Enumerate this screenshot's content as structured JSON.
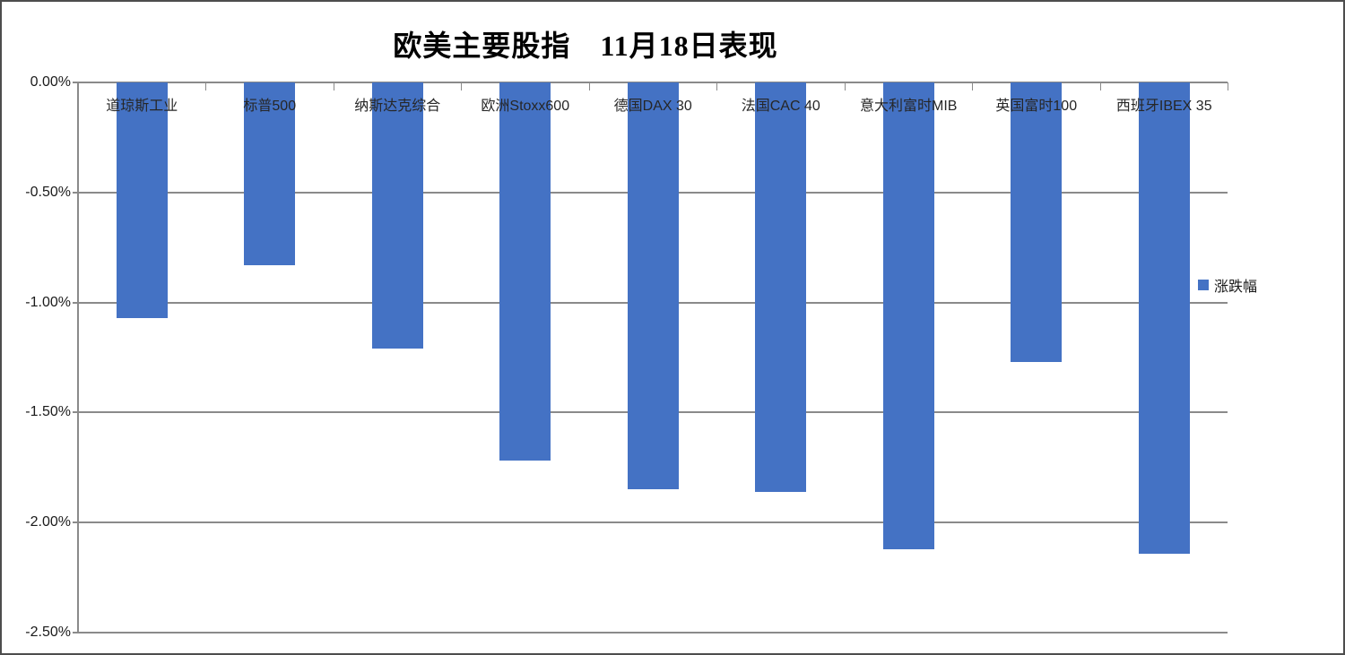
{
  "window": {
    "background": "#ffffff",
    "border_color": "#4d4d4d"
  },
  "chart_data": {
    "type": "bar",
    "title": "欧美主要股指　11月18日表现",
    "categories": [
      "道琼斯工业",
      "标普500",
      "纳斯达克综合",
      "欧洲Stoxx600",
      "德国DAX 30",
      "法国CAC 40",
      "意大利富时MIB",
      "英国富时100",
      "西班牙IBEX 35"
    ],
    "series": [
      {
        "name": "涨跌幅",
        "values": [
          -1.07,
          -0.83,
          -1.21,
          -1.72,
          -1.85,
          -1.86,
          -2.12,
          -1.27,
          -2.14
        ]
      }
    ],
    "unit": "%",
    "xlabel": "",
    "ylabel": "",
    "ylim": [
      -2.5,
      0
    ],
    "y_ticks": [
      "0.00%",
      "-0.50%",
      "-1.00%",
      "-1.50%",
      "-2.00%",
      "-2.50%"
    ],
    "y_tick_values": [
      0,
      -0.5,
      -1.0,
      -1.5,
      -2.0,
      -2.5
    ],
    "grid": true,
    "legend_position": "right",
    "bar_color": "#4472C4",
    "gridline_color": "#8a8a8a",
    "axis_color": "#8a8a8a",
    "category_labels_position": "below-zero-line"
  },
  "legend": {
    "label": "涨跌幅",
    "marker_color": "#4472C4"
  }
}
